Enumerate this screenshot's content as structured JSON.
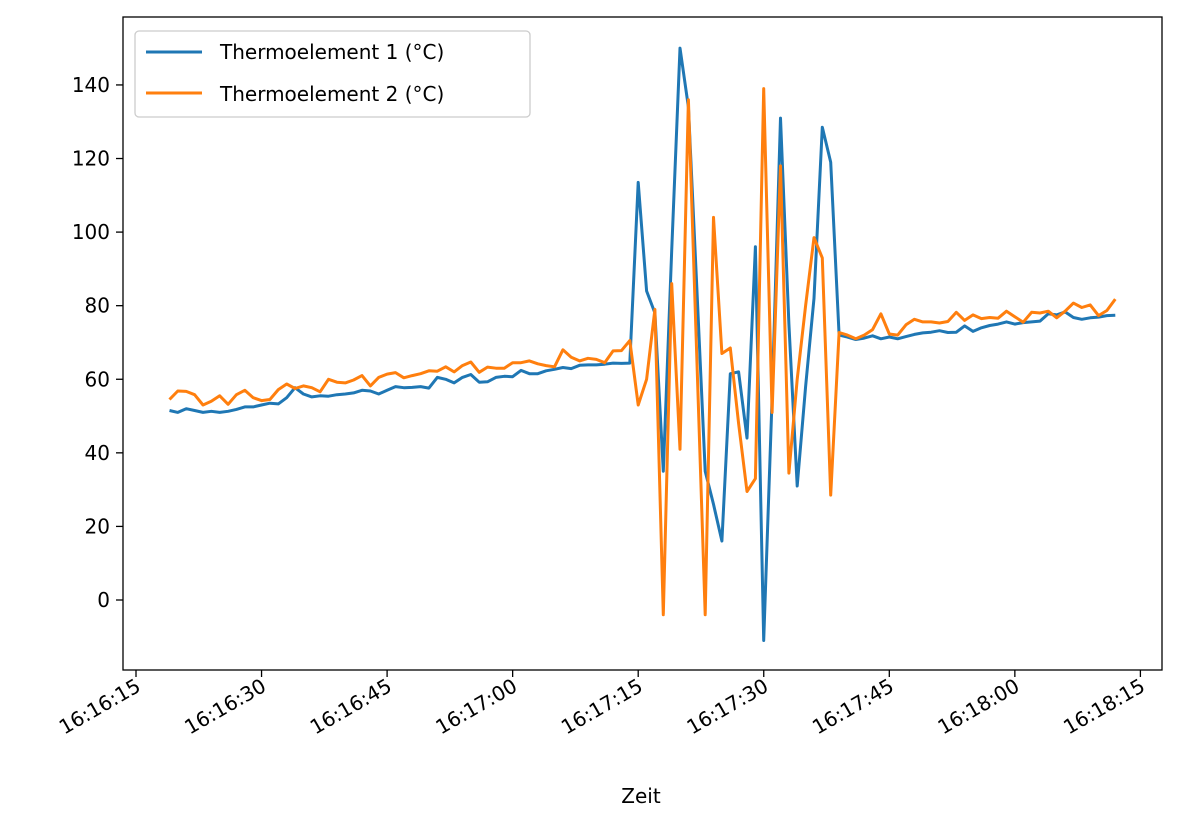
{
  "chart_data": {
    "type": "line",
    "title": "",
    "xlabel": "Zeit",
    "ylabel": "",
    "x_start": "16:16:19",
    "x_step_seconds": 1,
    "xlim": [
      "16:16:13.5",
      "16:18:17.6"
    ],
    "ylim": [
      -19,
      158.5
    ],
    "x_ticks": [
      "16:16:15",
      "16:16:30",
      "16:16:45",
      "16:17:00",
      "16:17:15",
      "16:17:30",
      "16:17:45",
      "16:18:00",
      "16:18:15"
    ],
    "y_ticks": [
      0,
      20,
      40,
      60,
      80,
      100,
      120,
      140
    ],
    "grid": false,
    "legend_position": "top-left",
    "series": [
      {
        "name": "Thermoelement 1 (°C)",
        "color": "#1f77b4",
        "values": [
          51.5,
          51,
          52,
          51.5,
          51,
          51.3,
          51,
          51.3,
          51.8,
          52.5,
          52.5,
          53,
          53.5,
          53.3,
          55,
          57.7,
          56,
          55.2,
          55.5,
          55.4,
          55.8,
          56,
          56.3,
          57,
          56.8,
          56,
          57,
          58,
          57.7,
          57.8,
          58,
          57.6,
          60.5,
          60,
          59,
          60.5,
          61.3,
          59.2,
          59.3,
          60.5,
          60.8,
          60.7,
          62.4,
          61.5,
          61.5,
          62.3,
          62.7,
          63.2,
          62.9,
          63.8,
          63.9,
          63.9,
          64.1,
          64.4,
          64.3,
          64.4,
          113.5,
          84,
          78,
          35,
          95,
          150,
          134,
          85,
          35,
          26,
          16,
          61.5,
          62,
          44,
          96,
          -11,
          55,
          131,
          75,
          31,
          58,
          82,
          128.5,
          119,
          72,
          71.5,
          70.8,
          71.2,
          71.8,
          71,
          71.5,
          71,
          71.6,
          72.2,
          72.6,
          72.8,
          73.2,
          72.7,
          72.8,
          74.5,
          73,
          74,
          74.6,
          75,
          75.6,
          75,
          75.4,
          75.6,
          75.8,
          77.8,
          77.5,
          78.3,
          76.8,
          76.3,
          76.7,
          76.9,
          77.3,
          77.4
        ]
      },
      {
        "name": "Thermoelement 2 (°C)",
        "color": "#ff7f0e",
        "values": [
          54.5,
          56.8,
          56.7,
          55.8,
          53,
          54,
          55.5,
          53.2,
          55.8,
          57,
          55,
          54.2,
          54.5,
          57.2,
          58.7,
          57.5,
          58.2,
          57.7,
          56.6,
          60,
          59.2,
          59,
          59.8,
          61,
          58.2,
          60.5,
          61.4,
          61.8,
          60.4,
          61,
          61.5,
          62.3,
          62.2,
          63.4,
          62,
          63.7,
          64.7,
          61.9,
          63.3,
          63,
          63,
          64.5,
          64.5,
          65,
          64.2,
          63.7,
          63.4,
          68,
          66,
          65,
          65.7,
          65.4,
          64.5,
          67.7,
          67.8,
          70.5,
          53,
          60,
          79,
          -4,
          86,
          41,
          136,
          66,
          -4,
          104,
          67,
          68.5,
          48,
          29.5,
          33,
          139,
          51,
          118,
          34.5,
          60,
          80,
          98.5,
          93,
          28.5,
          72.7,
          72,
          71,
          72,
          73.5,
          77.8,
          72.3,
          72,
          74.8,
          76.3,
          75.6,
          75.6,
          75.3,
          75.7,
          78.2,
          76,
          77.5,
          76.5,
          76.8,
          76.6,
          78.5,
          77,
          75.5,
          78.2,
          78,
          78.5,
          76.7,
          78.5,
          80.7,
          79.5,
          80.2,
          77.3,
          78.7,
          81.8
        ]
      }
    ]
  }
}
